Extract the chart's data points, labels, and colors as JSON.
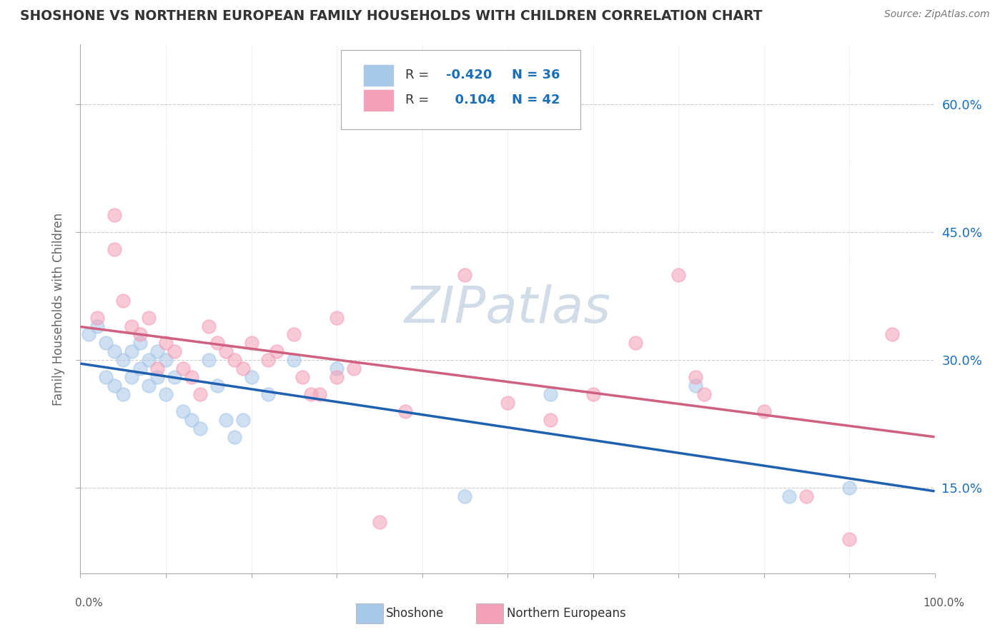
{
  "title": "SHOSHONE VS NORTHERN EUROPEAN FAMILY HOUSEHOLDS WITH CHILDREN CORRELATION CHART",
  "source": "Source: ZipAtlas.com",
  "ylabel": "Family Households with Children",
  "xlim": [
    0,
    100
  ],
  "ylim": [
    5,
    67
  ],
  "ytick_positions": [
    15.0,
    30.0,
    45.0,
    60.0
  ],
  "right_ytick_labels": [
    "15.0%",
    "30.0%",
    "45.0%",
    "60.0%"
  ],
  "grid_color": "#cccccc",
  "background_color": "#ffffff",
  "shoshone_color": "#a8c8e8",
  "northern_color": "#f4a0b8",
  "shoshone_line_color": "#2060b0",
  "northern_line_color": "#d06080",
  "shoshone_R": -0.42,
  "shoshone_N": 36,
  "northern_R": 0.104,
  "northern_N": 42,
  "legend_R_color": "#1a6fba",
  "legend_text_color": "#333333",
  "watermark": "ZIPatlas",
  "watermark_color": "#d0dce8",
  "shoshone_x": [
    1,
    2,
    3,
    3,
    4,
    4,
    5,
    5,
    6,
    6,
    7,
    7,
    8,
    8,
    9,
    9,
    10,
    10,
    11,
    12,
    13,
    14,
    15,
    16,
    17,
    18,
    19,
    20,
    22,
    25,
    30,
    45,
    55,
    72,
    83,
    90
  ],
  "shoshone_y": [
    33,
    34,
    32,
    28,
    31,
    27,
    30,
    26,
    31,
    28,
    32,
    29,
    30,
    27,
    31,
    28,
    30,
    26,
    28,
    24,
    23,
    22,
    30,
    27,
    23,
    21,
    23,
    28,
    26,
    30,
    29,
    14,
    26,
    27,
    14,
    15
  ],
  "northern_x": [
    2,
    4,
    4,
    5,
    6,
    7,
    8,
    9,
    10,
    11,
    12,
    13,
    14,
    15,
    16,
    17,
    18,
    19,
    20,
    22,
    23,
    25,
    26,
    27,
    28,
    30,
    30,
    32,
    35,
    38,
    45,
    50,
    55,
    60,
    65,
    70,
    72,
    73,
    80,
    85,
    90,
    95
  ],
  "northern_y": [
    35,
    47,
    43,
    37,
    34,
    33,
    35,
    29,
    32,
    31,
    29,
    28,
    26,
    34,
    32,
    31,
    30,
    29,
    32,
    30,
    31,
    33,
    28,
    26,
    26,
    28,
    35,
    29,
    11,
    24,
    40,
    25,
    23,
    26,
    32,
    40,
    28,
    26,
    24,
    14,
    9,
    33
  ]
}
